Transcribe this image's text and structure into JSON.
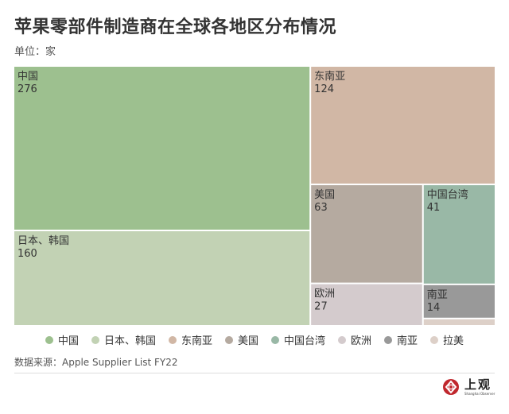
{
  "title": "苹果零部件制造商在全球各地区分布情况",
  "unit_label": "单位：家",
  "source": "数据来源：Apple Supplier List FY22",
  "logo": {
    "main": "上观",
    "sub": "Shanghai Observer",
    "mark_icon": "shanghai-observer-logo-icon",
    "accent": "#c0272d"
  },
  "chart_data": {
    "type": "treemap",
    "items": [
      {
        "name": "中国",
        "value": 276,
        "color": "#9dc08f"
      },
      {
        "name": "日本、韩国",
        "value": 160,
        "color": "#c2d2b4"
      },
      {
        "name": "东南亚",
        "value": 124,
        "color": "#d1b7a5"
      },
      {
        "name": "美国",
        "value": 63,
        "color": "#b5aaa0"
      },
      {
        "name": "中国台湾",
        "value": 41,
        "color": "#99b8a6"
      },
      {
        "name": "欧洲",
        "value": 27,
        "color": "#d4cbcd"
      },
      {
        "name": "南亚",
        "value": 14,
        "color": "#999999"
      },
      {
        "name": "拉美",
        "value": 3,
        "color": "#ddd0c8"
      }
    ],
    "legend_position": "bottom"
  }
}
